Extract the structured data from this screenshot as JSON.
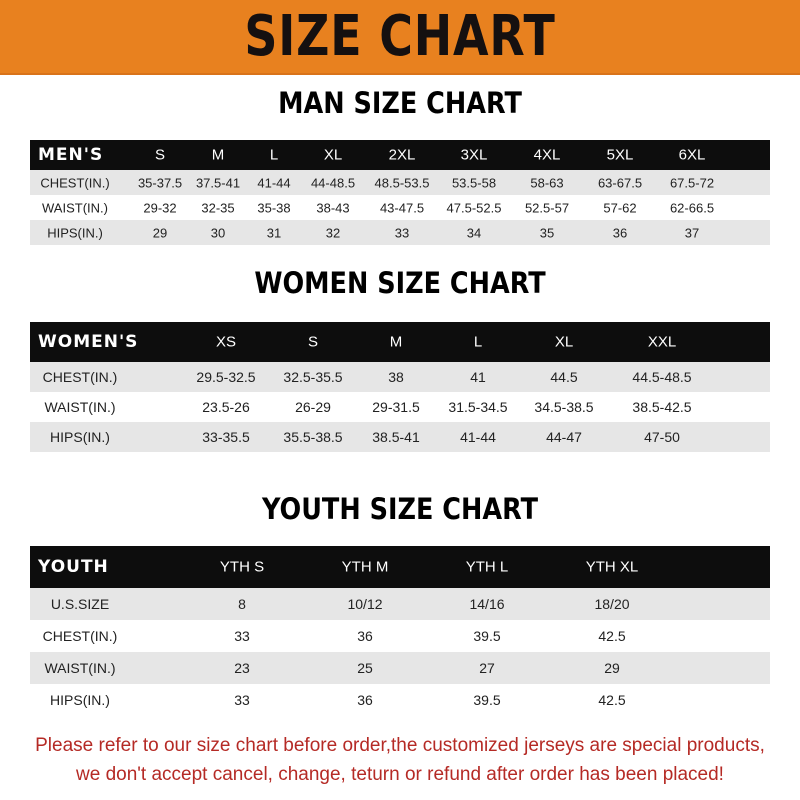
{
  "title": "SIZE CHART",
  "colors": {
    "banner": "#e8811f",
    "header_row": "#0d0d0d",
    "stripe": "#e6e6e6",
    "note": "#b52a25"
  },
  "tables": [
    {
      "title": "MAN SIZE CHART",
      "header": [
        "MEN'S",
        "S",
        "M",
        "L",
        "XL",
        "2XL",
        "3XL",
        "4XL",
        "5XL",
        "6XL"
      ],
      "rows": [
        [
          "CHEST(IN.)",
          "35-37.5",
          "37.5-41",
          "41-44",
          "44-48.5",
          "48.5-53.5",
          "53.5-58",
          "58-63",
          "63-67.5",
          "67.5-72"
        ],
        [
          "WAIST(IN.)",
          "29-32",
          "32-35",
          "35-38",
          "38-43",
          "43-47.5",
          "47.5-52.5",
          "52.5-57",
          "57-62",
          "62-66.5"
        ],
        [
          "HIPS(IN.)",
          "29",
          "30",
          "31",
          "32",
          "33",
          "34",
          "35",
          "36",
          "37"
        ]
      ]
    },
    {
      "title": "WOMEN SIZE CHART",
      "header": [
        "WOMEN'S",
        "XS",
        "S",
        "M",
        "L",
        "XL",
        "XXL"
      ],
      "rows": [
        [
          "CHEST(IN.)",
          "29.5-32.5",
          "32.5-35.5",
          "38",
          "41",
          "44.5",
          "44.5-48.5"
        ],
        [
          "WAIST(IN.)",
          "23.5-26",
          "26-29",
          "29-31.5",
          "31.5-34.5",
          "34.5-38.5",
          "38.5-42.5"
        ],
        [
          "HIPS(IN.)",
          "33-35.5",
          "35.5-38.5",
          "38.5-41",
          "41-44",
          "44-47",
          "47-50"
        ]
      ]
    },
    {
      "title": "YOUTH SIZE CHART",
      "header": [
        "YOUTH",
        "YTH S",
        "YTH M",
        "YTH L",
        "YTH XL"
      ],
      "rows": [
        [
          "U.S.SIZE",
          "8",
          "10/12",
          "14/16",
          "18/20"
        ],
        [
          "CHEST(IN.)",
          "33",
          "36",
          "39.5",
          "42.5"
        ],
        [
          "WAIST(IN.)",
          "23",
          "25",
          "27",
          "29"
        ],
        [
          "HIPS(IN.)",
          "33",
          "36",
          "39.5",
          "42.5"
        ]
      ]
    }
  ],
  "notice": [
    "Please refer to our size chart before order,the customized jerseys are special products,",
    "we don't accept cancel, change, teturn or refund after order has been placed!"
  ]
}
